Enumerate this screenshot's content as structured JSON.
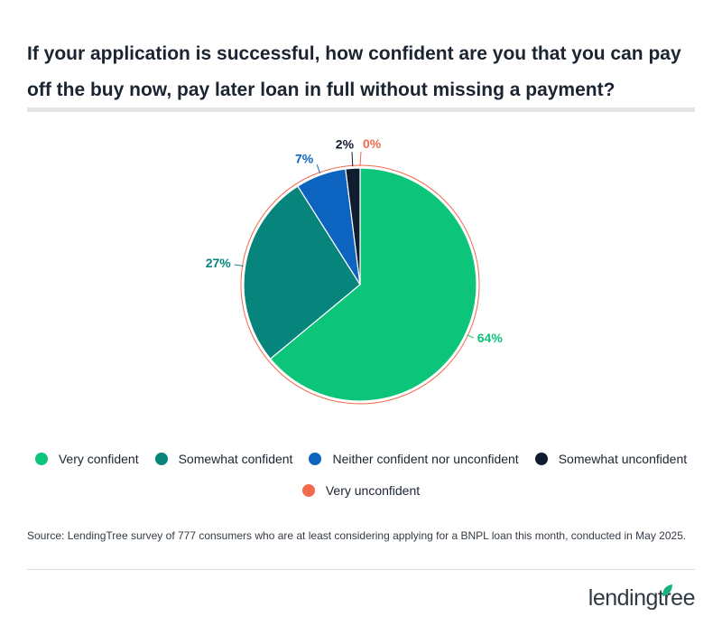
{
  "title": "If your application is successful, how confident are you that you can pay off the buy now, pay later loan in full without missing a payment?",
  "chart_data": {
    "type": "pie",
    "start_angle_deg": 0,
    "direction": "clockwise",
    "slices": [
      {
        "label": "Very confident",
        "value": 64,
        "display": "64%",
        "color": "#0cc47a"
      },
      {
        "label": "Somewhat confident",
        "value": 27,
        "display": "27%",
        "color": "#07847c"
      },
      {
        "label": "Neither confident nor unconfident",
        "value": 7,
        "display": "7%",
        "color": "#0d64c0"
      },
      {
        "label": "Somewhat unconfident",
        "value": 2,
        "display": "2%",
        "color": "#0f1d2e"
      },
      {
        "label": "Very unconfident",
        "value": 0,
        "display": "0%",
        "color": "#f06b4c"
      }
    ],
    "legend_position": "bottom"
  },
  "source": "Source: LendingTree survey of 777 consumers who are at least considering applying for a BNPL loan this month, conducted in May 2025.",
  "brand": {
    "logo_text": "lendingtree",
    "leaf_color": "#17b27a"
  }
}
